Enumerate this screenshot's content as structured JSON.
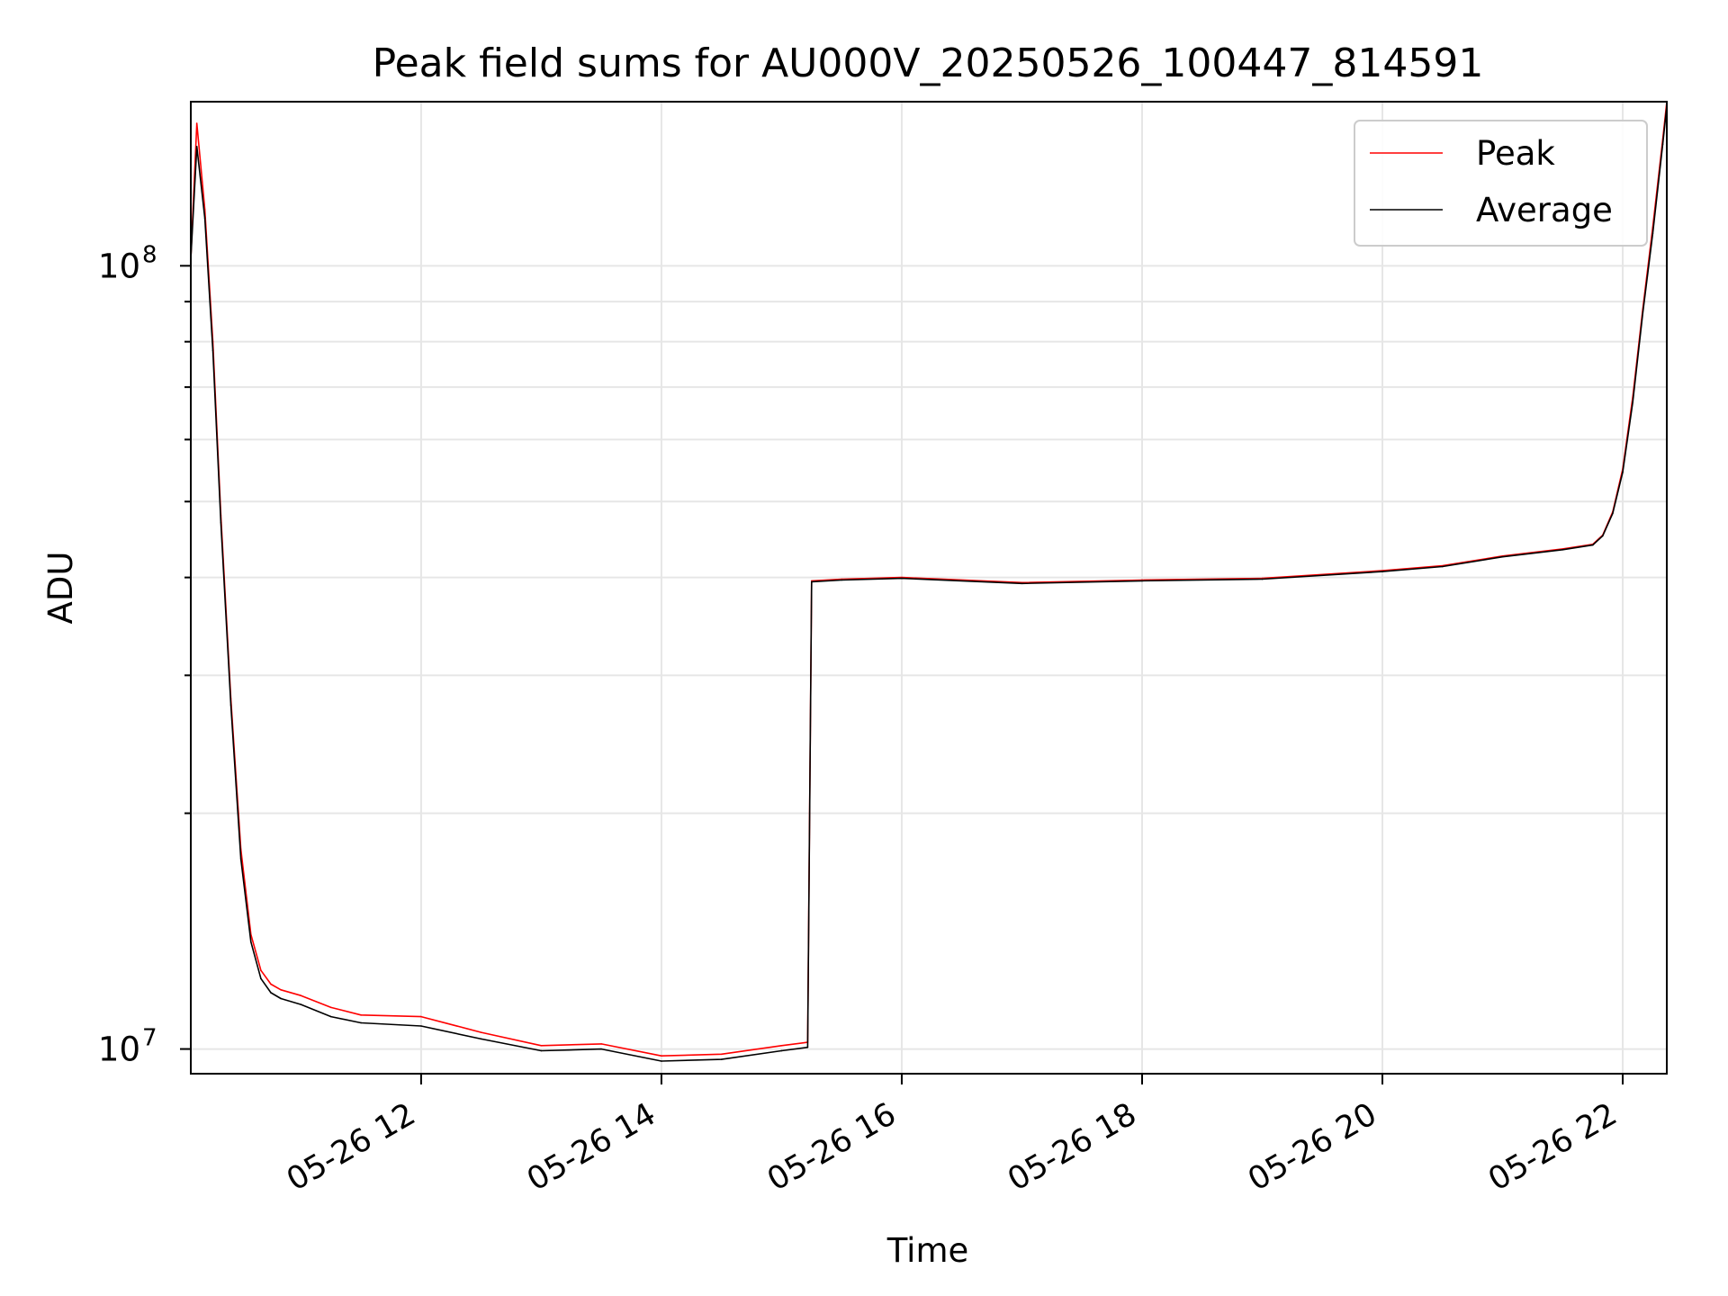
{
  "chart_data": {
    "type": "line",
    "title": "Peak field sums for AU000V_20250526_100447_814591",
    "xlabel": "Time",
    "ylabel": "ADU",
    "yscale": "log",
    "xlim": [
      "2025-05-26 10:05",
      "2025-05-26 22:22"
    ],
    "ylim": [
      9300000,
      162000000
    ],
    "grid": true,
    "legend_position": "top-right",
    "x_ticks": [
      {
        "value": "2025-05-26 12:00",
        "label": "05-26 12"
      },
      {
        "value": "2025-05-26 14:00",
        "label": "05-26 14"
      },
      {
        "value": "2025-05-26 16:00",
        "label": "05-26 16"
      },
      {
        "value": "2025-05-26 18:00",
        "label": "05-26 18"
      },
      {
        "value": "2025-05-26 20:00",
        "label": "05-26 20"
      },
      {
        "value": "2025-05-26 22:00",
        "label": "05-26 22"
      }
    ],
    "y_ticks": [
      {
        "value": 10000000,
        "base": "10",
        "exp": "7"
      },
      {
        "value": 100000000,
        "base": "10",
        "exp": "8"
      }
    ],
    "series": [
      {
        "name": "Peak",
        "color": "#ff0000",
        "x": [
          "2025-05-26 10:05",
          "2025-05-26 10:08",
          "2025-05-26 10:12",
          "2025-05-26 10:16",
          "2025-05-26 10:20",
          "2025-05-26 10:25",
          "2025-05-26 10:30",
          "2025-05-26 10:35",
          "2025-05-26 10:40",
          "2025-05-26 10:45",
          "2025-05-26 10:50",
          "2025-05-26 11:00",
          "2025-05-26 11:15",
          "2025-05-26 11:30",
          "2025-05-26 12:00",
          "2025-05-26 12:30",
          "2025-05-26 13:00",
          "2025-05-26 13:30",
          "2025-05-26 14:00",
          "2025-05-26 14:30",
          "2025-05-26 15:00",
          "2025-05-26 15:13",
          "2025-05-26 15:15",
          "2025-05-26 15:30",
          "2025-05-26 16:00",
          "2025-05-26 17:00",
          "2025-05-26 18:00",
          "2025-05-26 19:00",
          "2025-05-26 20:00",
          "2025-05-26 20:30",
          "2025-05-26 21:00",
          "2025-05-26 21:30",
          "2025-05-26 21:45",
          "2025-05-26 21:50",
          "2025-05-26 21:55",
          "2025-05-26 22:00",
          "2025-05-26 22:05",
          "2025-05-26 22:10",
          "2025-05-26 22:15",
          "2025-05-26 22:20",
          "2025-05-26 22:22"
        ],
        "y": [
          102000000,
          152000000,
          118000000,
          80000000,
          48000000,
          28000000,
          18000000,
          14000000,
          12600000,
          12100000,
          11900000,
          11700000,
          11300000,
          11050000,
          11000000,
          10500000,
          10100000,
          10150000,
          9800000,
          9850000,
          10100000,
          10200000,
          39600000,
          39800000,
          40000000,
          39400000,
          39700000,
          39900000,
          40800000,
          41400000,
          42600000,
          43500000,
          44100000,
          45300000,
          48500000,
          55000000,
          68000000,
          88000000,
          112000000,
          145000000,
          162000000
        ]
      },
      {
        "name": "Average",
        "color": "#000000",
        "x": [
          "2025-05-26 10:05",
          "2025-05-26 10:08",
          "2025-05-26 10:12",
          "2025-05-26 10:16",
          "2025-05-26 10:20",
          "2025-05-26 10:25",
          "2025-05-26 10:30",
          "2025-05-26 10:35",
          "2025-05-26 10:40",
          "2025-05-26 10:45",
          "2025-05-26 10:50",
          "2025-05-26 11:00",
          "2025-05-26 11:15",
          "2025-05-26 11:30",
          "2025-05-26 12:00",
          "2025-05-26 12:30",
          "2025-05-26 13:00",
          "2025-05-26 13:30",
          "2025-05-26 14:00",
          "2025-05-26 14:30",
          "2025-05-26 15:00",
          "2025-05-26 15:13",
          "2025-05-26 15:15",
          "2025-05-26 15:30",
          "2025-05-26 16:00",
          "2025-05-26 17:00",
          "2025-05-26 18:00",
          "2025-05-26 19:00",
          "2025-05-26 20:00",
          "2025-05-26 20:30",
          "2025-05-26 21:00",
          "2025-05-26 21:30",
          "2025-05-26 21:45",
          "2025-05-26 21:50",
          "2025-05-26 21:55",
          "2025-05-26 22:00",
          "2025-05-26 22:05",
          "2025-05-26 22:10",
          "2025-05-26 22:15",
          "2025-05-26 22:20",
          "2025-05-26 22:22"
        ],
        "y": [
          102000000,
          142000000,
          115000000,
          78000000,
          47000000,
          27500000,
          17500000,
          13700000,
          12300000,
          11800000,
          11600000,
          11400000,
          11000000,
          10800000,
          10700000,
          10300000,
          9950000,
          10000000,
          9650000,
          9700000,
          9950000,
          10050000,
          39500000,
          39700000,
          39900000,
          39300000,
          39600000,
          39800000,
          40700000,
          41300000,
          42500000,
          43400000,
          44000000,
          45200000,
          48300000,
          54500000,
          67000000,
          87000000,
          110000000,
          143000000,
          160000000
        ]
      }
    ]
  }
}
